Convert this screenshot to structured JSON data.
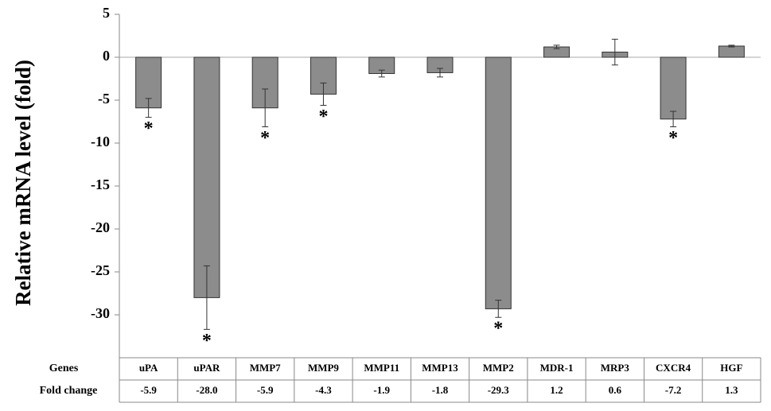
{
  "chart_data": {
    "type": "bar",
    "y_label": "Relative mRNA level (fold)",
    "row_labels": [
      "Genes",
      "Fold change"
    ],
    "categories": [
      "uPA",
      "uPAR",
      "MMP7",
      "MMP9",
      "MMP11",
      "MMP13",
      "MMP2",
      "MDR-1",
      "MRP3",
      "CXCR4",
      "HGF"
    ],
    "values": [
      -5.9,
      -28.0,
      -5.9,
      -4.3,
      -1.9,
      -1.8,
      -29.3,
      1.2,
      0.6,
      -7.2,
      1.3
    ],
    "value_labels": [
      "-5.9",
      "-28.0",
      "-5.9",
      "-4.3",
      "-1.9",
      "-1.8",
      "-29.3",
      "1.2",
      "0.6",
      "-7.2",
      "1.3"
    ],
    "errors": [
      1.1,
      3.7,
      2.2,
      1.3,
      0.4,
      0.5,
      1.0,
      0.2,
      1.5,
      0.9,
      0.1
    ],
    "significance": [
      "*",
      "*",
      "*",
      "*",
      null,
      null,
      "*",
      null,
      null,
      "*",
      null
    ],
    "color": "#8c8c8c",
    "ylim": [
      -35,
      5
    ],
    "yticks": [
      5,
      0,
      -5,
      -10,
      -15,
      -20,
      -25,
      -30
    ]
  }
}
